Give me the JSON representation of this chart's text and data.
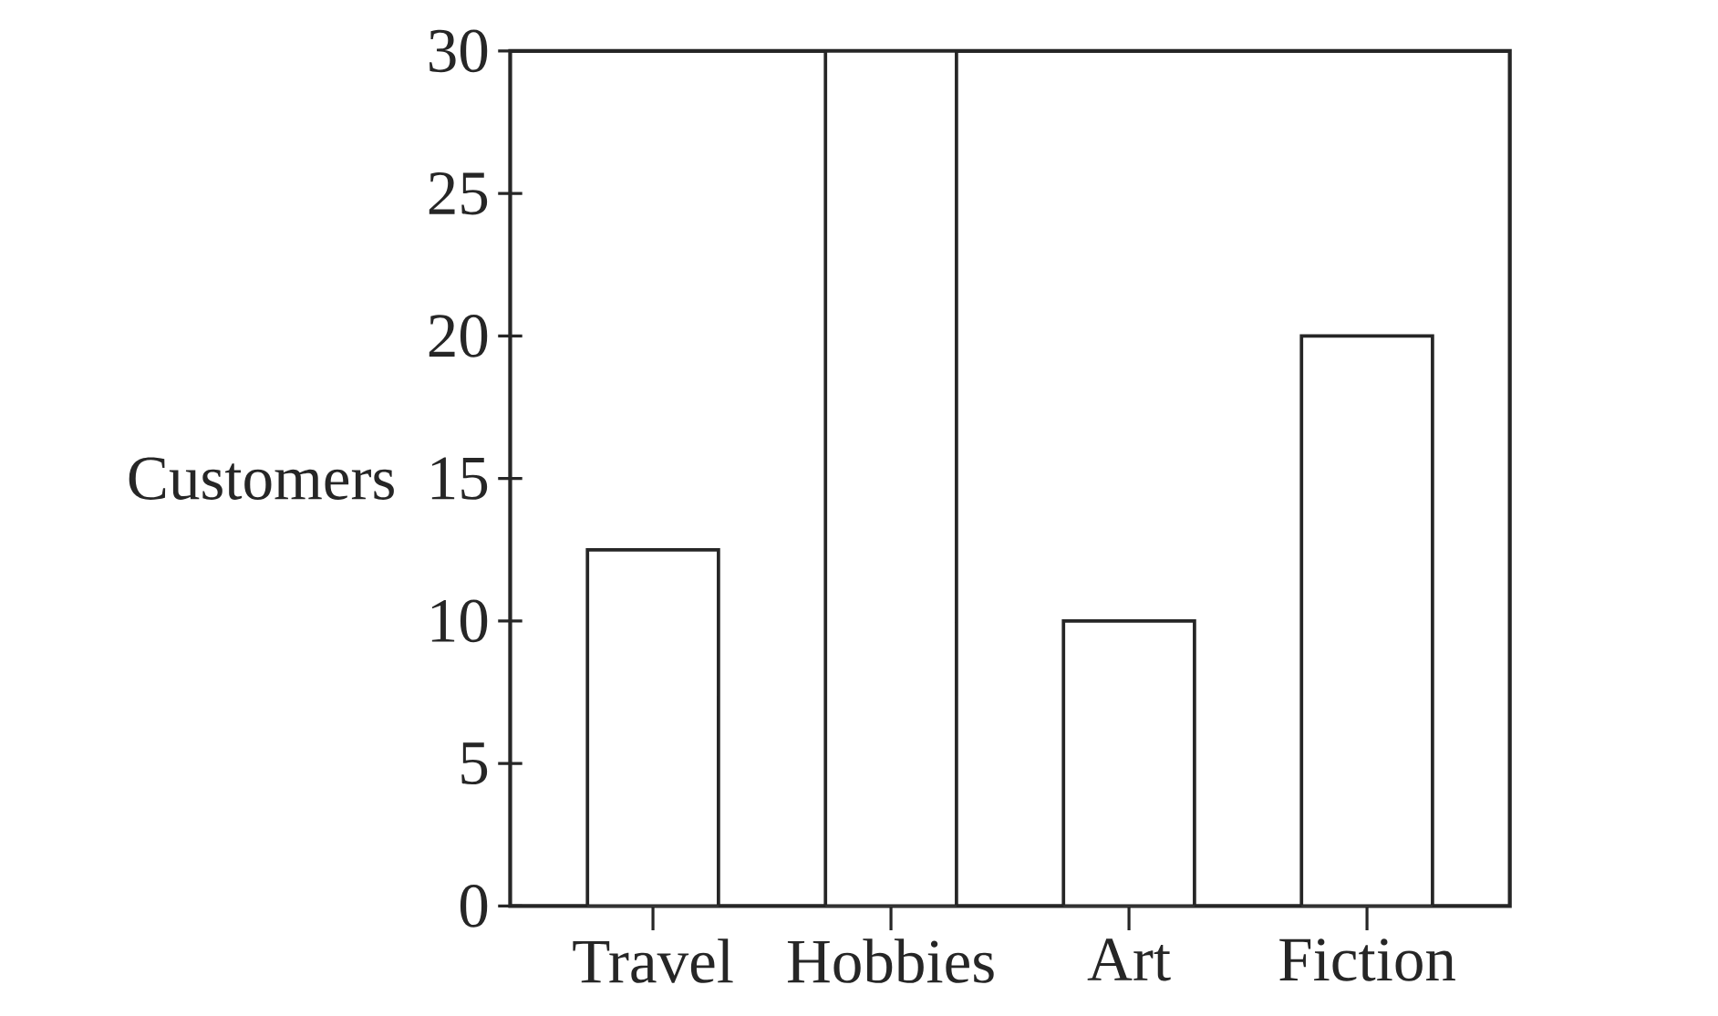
{
  "chart_data": {
    "type": "bar",
    "ylabel": "Customers",
    "categories": [
      "Travel",
      "Hobbies",
      "Art",
      "Fiction"
    ],
    "values": [
      12.5,
      30,
      10,
      20
    ],
    "color": "#ffffff",
    "ylim": [
      0,
      30
    ],
    "yticks": [
      0,
      5,
      10,
      15,
      20,
      25,
      30
    ]
  }
}
